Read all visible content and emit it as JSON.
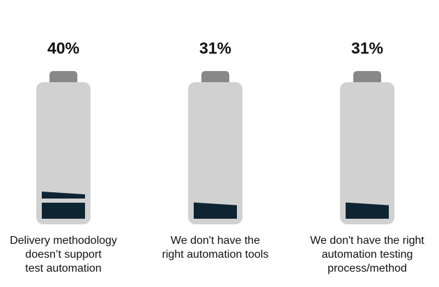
{
  "chart_data": {
    "type": "bar",
    "categories": [
      [
        "Delivery methodology",
        "doesn’t support",
        "test automation"
      ],
      [
        "We don't have the",
        "right automation tools"
      ],
      [
        "We don't have the right",
        "automation testing",
        "process/method"
      ]
    ],
    "values": [
      40,
      31,
      31
    ],
    "value_labels": [
      "40%",
      "31%",
      "31%"
    ],
    "ylim": [
      0,
      100
    ],
    "colors": {
      "battery_body": "#d1d1d1",
      "battery_cap": "#888888",
      "fill": "#0f2433"
    }
  }
}
